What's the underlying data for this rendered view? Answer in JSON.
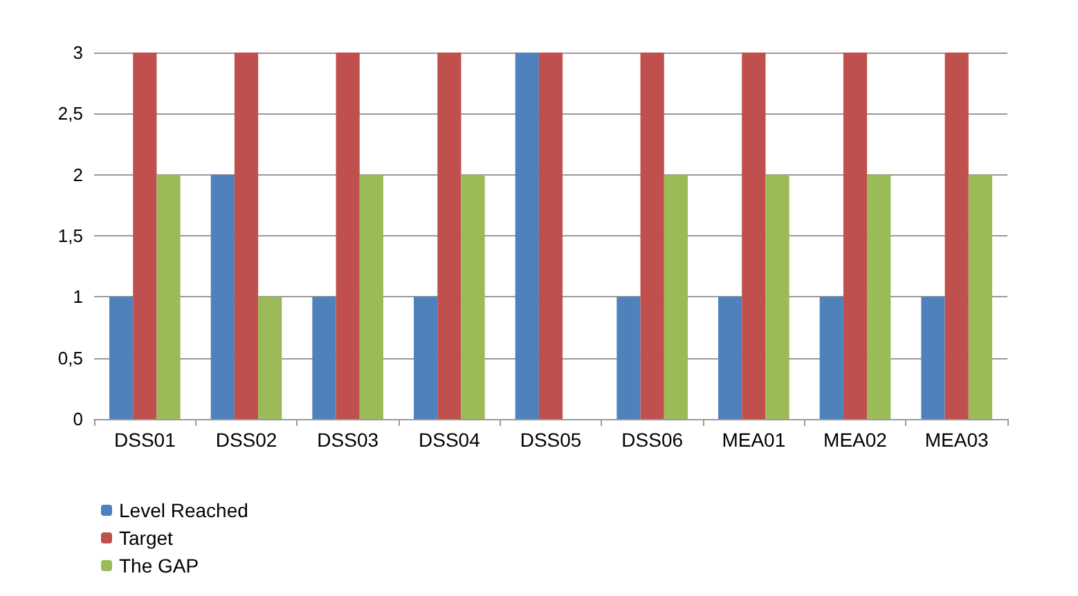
{
  "chart_data": {
    "type": "bar",
    "categories": [
      "DSS01",
      "DSS02",
      "DSS03",
      "DSS04",
      "DSS05",
      "DSS06",
      "MEA01",
      "MEA02",
      "MEA03"
    ],
    "series": [
      {
        "name": "Level Reached",
        "color": "#4f81bd",
        "values": [
          1,
          2,
          1,
          1,
          3,
          1,
          1,
          1,
          1
        ]
      },
      {
        "name": "Target",
        "color": "#c0504d",
        "values": [
          3,
          3,
          3,
          3,
          3,
          3,
          3,
          3,
          3
        ]
      },
      {
        "name": "The GAP",
        "color": "#9bbb59",
        "values": [
          2,
          1,
          2,
          2,
          0,
          2,
          2,
          2,
          2
        ]
      }
    ],
    "ylim": [
      0,
      3
    ],
    "yticks": [
      0,
      {
        "value": 0.5,
        "label": "0,5"
      },
      1,
      {
        "value": 1.5,
        "label": "1,5"
      },
      2,
      {
        "value": 2.5,
        "label": "2,5"
      },
      3
    ],
    "grid": "y",
    "legend": "bottom left"
  }
}
